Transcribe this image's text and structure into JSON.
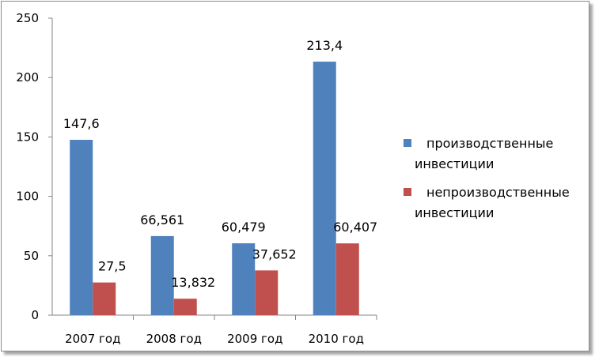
{
  "chart_data": {
    "type": "bar",
    "categories": [
      "2007 год",
      "2008 год",
      "2009 год",
      "2010 год"
    ],
    "series": [
      {
        "name": "производственные инвестиции",
        "name_lines": [
          "производственные",
          "инвестиции"
        ],
        "values": [
          147.6,
          66.561,
          60.479,
          213.4
        ],
        "labels": [
          "147,6",
          "66,561",
          "60,479",
          "213,4"
        ],
        "color": "#4F81BD"
      },
      {
        "name": "непроизводственные инвестиции",
        "name_lines": [
          "непроизводственные",
          "инвестиции"
        ],
        "values": [
          27.5,
          13.832,
          37.652,
          60.407
        ],
        "labels": [
          "27,5",
          "13,832",
          "37,652",
          "60,407"
        ],
        "color": "#C0504D"
      }
    ],
    "y_ticks": [
      "0",
      "50",
      "100",
      "150",
      "200",
      "250"
    ],
    "ylim": [
      0,
      250
    ],
    "grid": false,
    "legend_position": "right",
    "title": "",
    "xlabel": "",
    "ylabel": ""
  }
}
